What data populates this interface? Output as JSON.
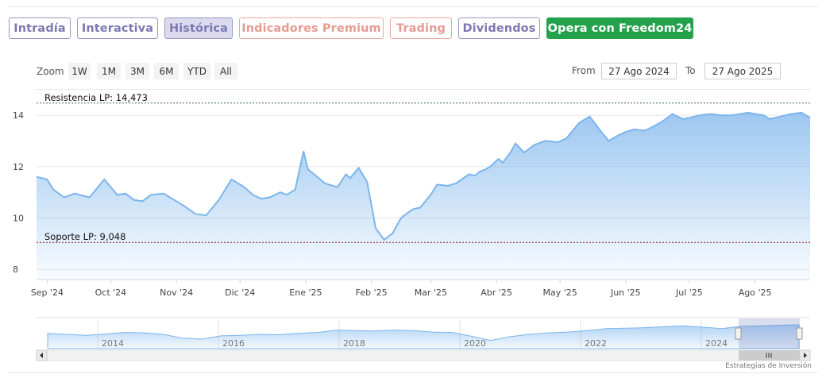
{
  "tabs": [
    {
      "label": "Intradía",
      "style": "purple"
    },
    {
      "label": "Interactiva",
      "style": "purple"
    },
    {
      "label": "Histórica",
      "style": "active"
    },
    {
      "label": "Indicadores Premium",
      "style": "red"
    },
    {
      "label": "Trading",
      "style": "red"
    },
    {
      "label": "Dividendos",
      "style": "purple"
    },
    {
      "label": "Opera con Freedom24",
      "style": "green"
    }
  ],
  "zoom": {
    "label": "Zoom",
    "buttons": [
      "1W",
      "1M",
      "3M",
      "6M",
      "YTD",
      "All"
    ]
  },
  "range": {
    "from_label": "From",
    "from_value": "27 Ago 2024",
    "to_label": "To",
    "to_value": "27 Ago 2025"
  },
  "credit": "Estrategias de Inversión",
  "colors": {
    "line": "#7cb5ec",
    "accent_green": "#23a24b",
    "tab_purple": "#7d79b3",
    "tab_red": "#e59b93"
  },
  "chart_data": {
    "type": "area",
    "y_ticks": [
      8,
      10,
      12,
      14
    ],
    "ylim": [
      7.6,
      14.9
    ],
    "x_tick_labels": [
      "Sep '24",
      "Oct '24",
      "Nov '24",
      "Dic '24",
      "Ene '25",
      "Feb '25",
      "Mar '25",
      "Abr '25",
      "May '25",
      "Jun '25",
      "Jul '25",
      "Ago '25"
    ],
    "x_tick_days": [
      5,
      35,
      66,
      96,
      127,
      158,
      186,
      217,
      247,
      278,
      308,
      339
    ],
    "xlim_days": [
      0,
      365
    ],
    "plot_lines": [
      {
        "label": "Resistencia LP: 14,473",
        "value": 14.473,
        "color": "#3a6b3a"
      },
      {
        "label": "Soporte LP: 9,048",
        "value": 9.048,
        "color": "#8b1a1a"
      }
    ],
    "series": [
      {
        "x": [
          0,
          5,
          8,
          13,
          18,
          25,
          32,
          38,
          42,
          46,
          50,
          54,
          60,
          65,
          70,
          75,
          80,
          86,
          92,
          98,
          102,
          106,
          110,
          115,
          118,
          122,
          126,
          128,
          131,
          136,
          142,
          146,
          148,
          152,
          156,
          160,
          164,
          168,
          170,
          172,
          176,
          178,
          181,
          186,
          189,
          194,
          198,
          204,
          207,
          209,
          212,
          214,
          218,
          220,
          224,
          226,
          230,
          235,
          240,
          246,
          250,
          256,
          261,
          266,
          270,
          274,
          278,
          282,
          287,
          292,
          296,
          300,
          305,
          308,
          313,
          318,
          323,
          328,
          332,
          336,
          339,
          343,
          346,
          351,
          356,
          361,
          365
        ],
        "y": [
          11.6,
          11.5,
          11.1,
          10.8,
          10.95,
          10.8,
          11.5,
          10.9,
          10.95,
          10.7,
          10.65,
          10.9,
          10.95,
          10.7,
          10.45,
          10.15,
          10.1,
          10.7,
          11.5,
          11.2,
          10.9,
          10.75,
          10.8,
          11.0,
          10.9,
          11.1,
          12.6,
          11.9,
          11.7,
          11.35,
          11.2,
          11.7,
          11.55,
          11.95,
          11.4,
          9.6,
          9.15,
          9.4,
          9.7,
          10.0,
          10.25,
          10.35,
          10.4,
          10.9,
          11.3,
          11.25,
          11.35,
          11.7,
          11.65,
          11.8,
          11.9,
          12.0,
          12.3,
          12.15,
          12.6,
          12.9,
          12.55,
          12.85,
          13.0,
          12.95,
          13.1,
          13.7,
          13.95,
          13.4,
          13.0,
          13.2,
          13.35,
          13.45,
          13.4,
          13.6,
          13.8,
          14.05,
          13.85,
          13.9,
          14.0,
          14.05,
          14.0,
          14.0,
          14.05,
          14.1,
          14.05,
          14.0,
          13.85,
          13.95,
          14.05,
          14.1,
          13.9
        ]
      }
    ],
    "navigator": {
      "year_labels": [
        "2014",
        "2016",
        "2018",
        "2020",
        "2022",
        "2024"
      ]
    }
  }
}
